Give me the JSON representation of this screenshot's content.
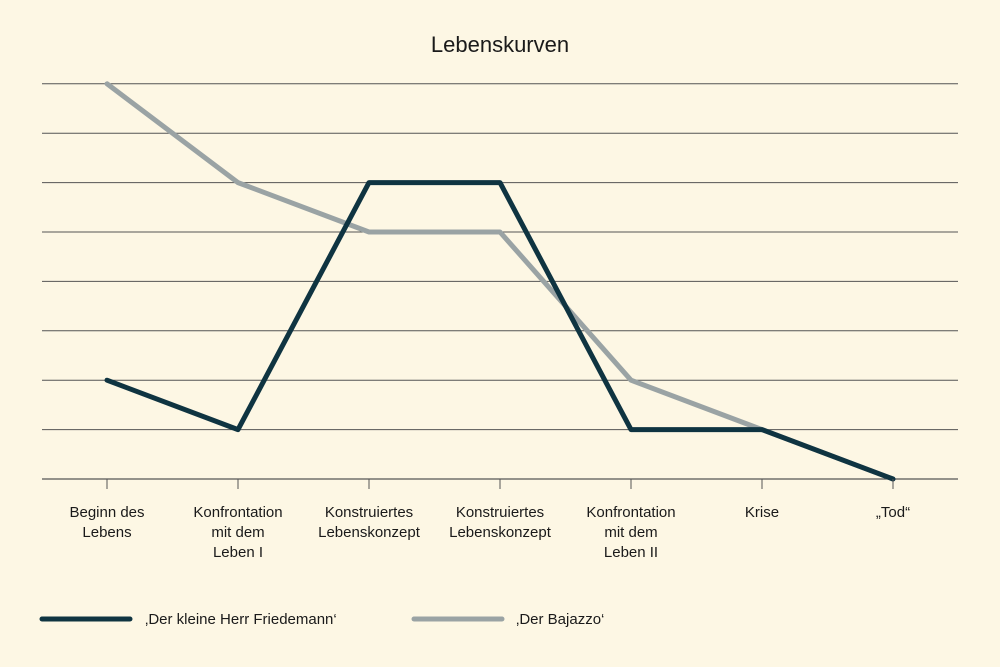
{
  "chart_data": {
    "type": "line",
    "title": "Lebenskurven",
    "xlabel": "",
    "ylabel": "",
    "categories": [
      [
        "Beginn des",
        "Lebens"
      ],
      [
        "Konfrontation",
        "mit dem",
        "Leben I"
      ],
      [
        "Konstruiertes",
        "Lebenskonzept"
      ],
      [
        "Konstruiertes",
        "Lebenskonzept"
      ],
      [
        "Konfrontation",
        "mit dem",
        "Leben II"
      ],
      [
        "Krise"
      ],
      [
        "„Tod“"
      ]
    ],
    "ylim": [
      0,
      8
    ],
    "grid": true,
    "legend_position": "bottom-left",
    "series": [
      {
        "name": "‚Der kleine Herr Friedemann‘",
        "color": "#0f3441",
        "values": [
          2,
          1,
          6,
          6,
          1,
          1,
          0
        ]
      },
      {
        "name": "‚Der Bajazzo‘",
        "color": "#9aa3a4",
        "values": [
          8,
          6,
          5,
          5,
          2,
          1,
          0
        ]
      }
    ],
    "colors": {
      "background": "#fdf7e4",
      "grid": "#555555",
      "text": "#1a1a1a"
    }
  }
}
